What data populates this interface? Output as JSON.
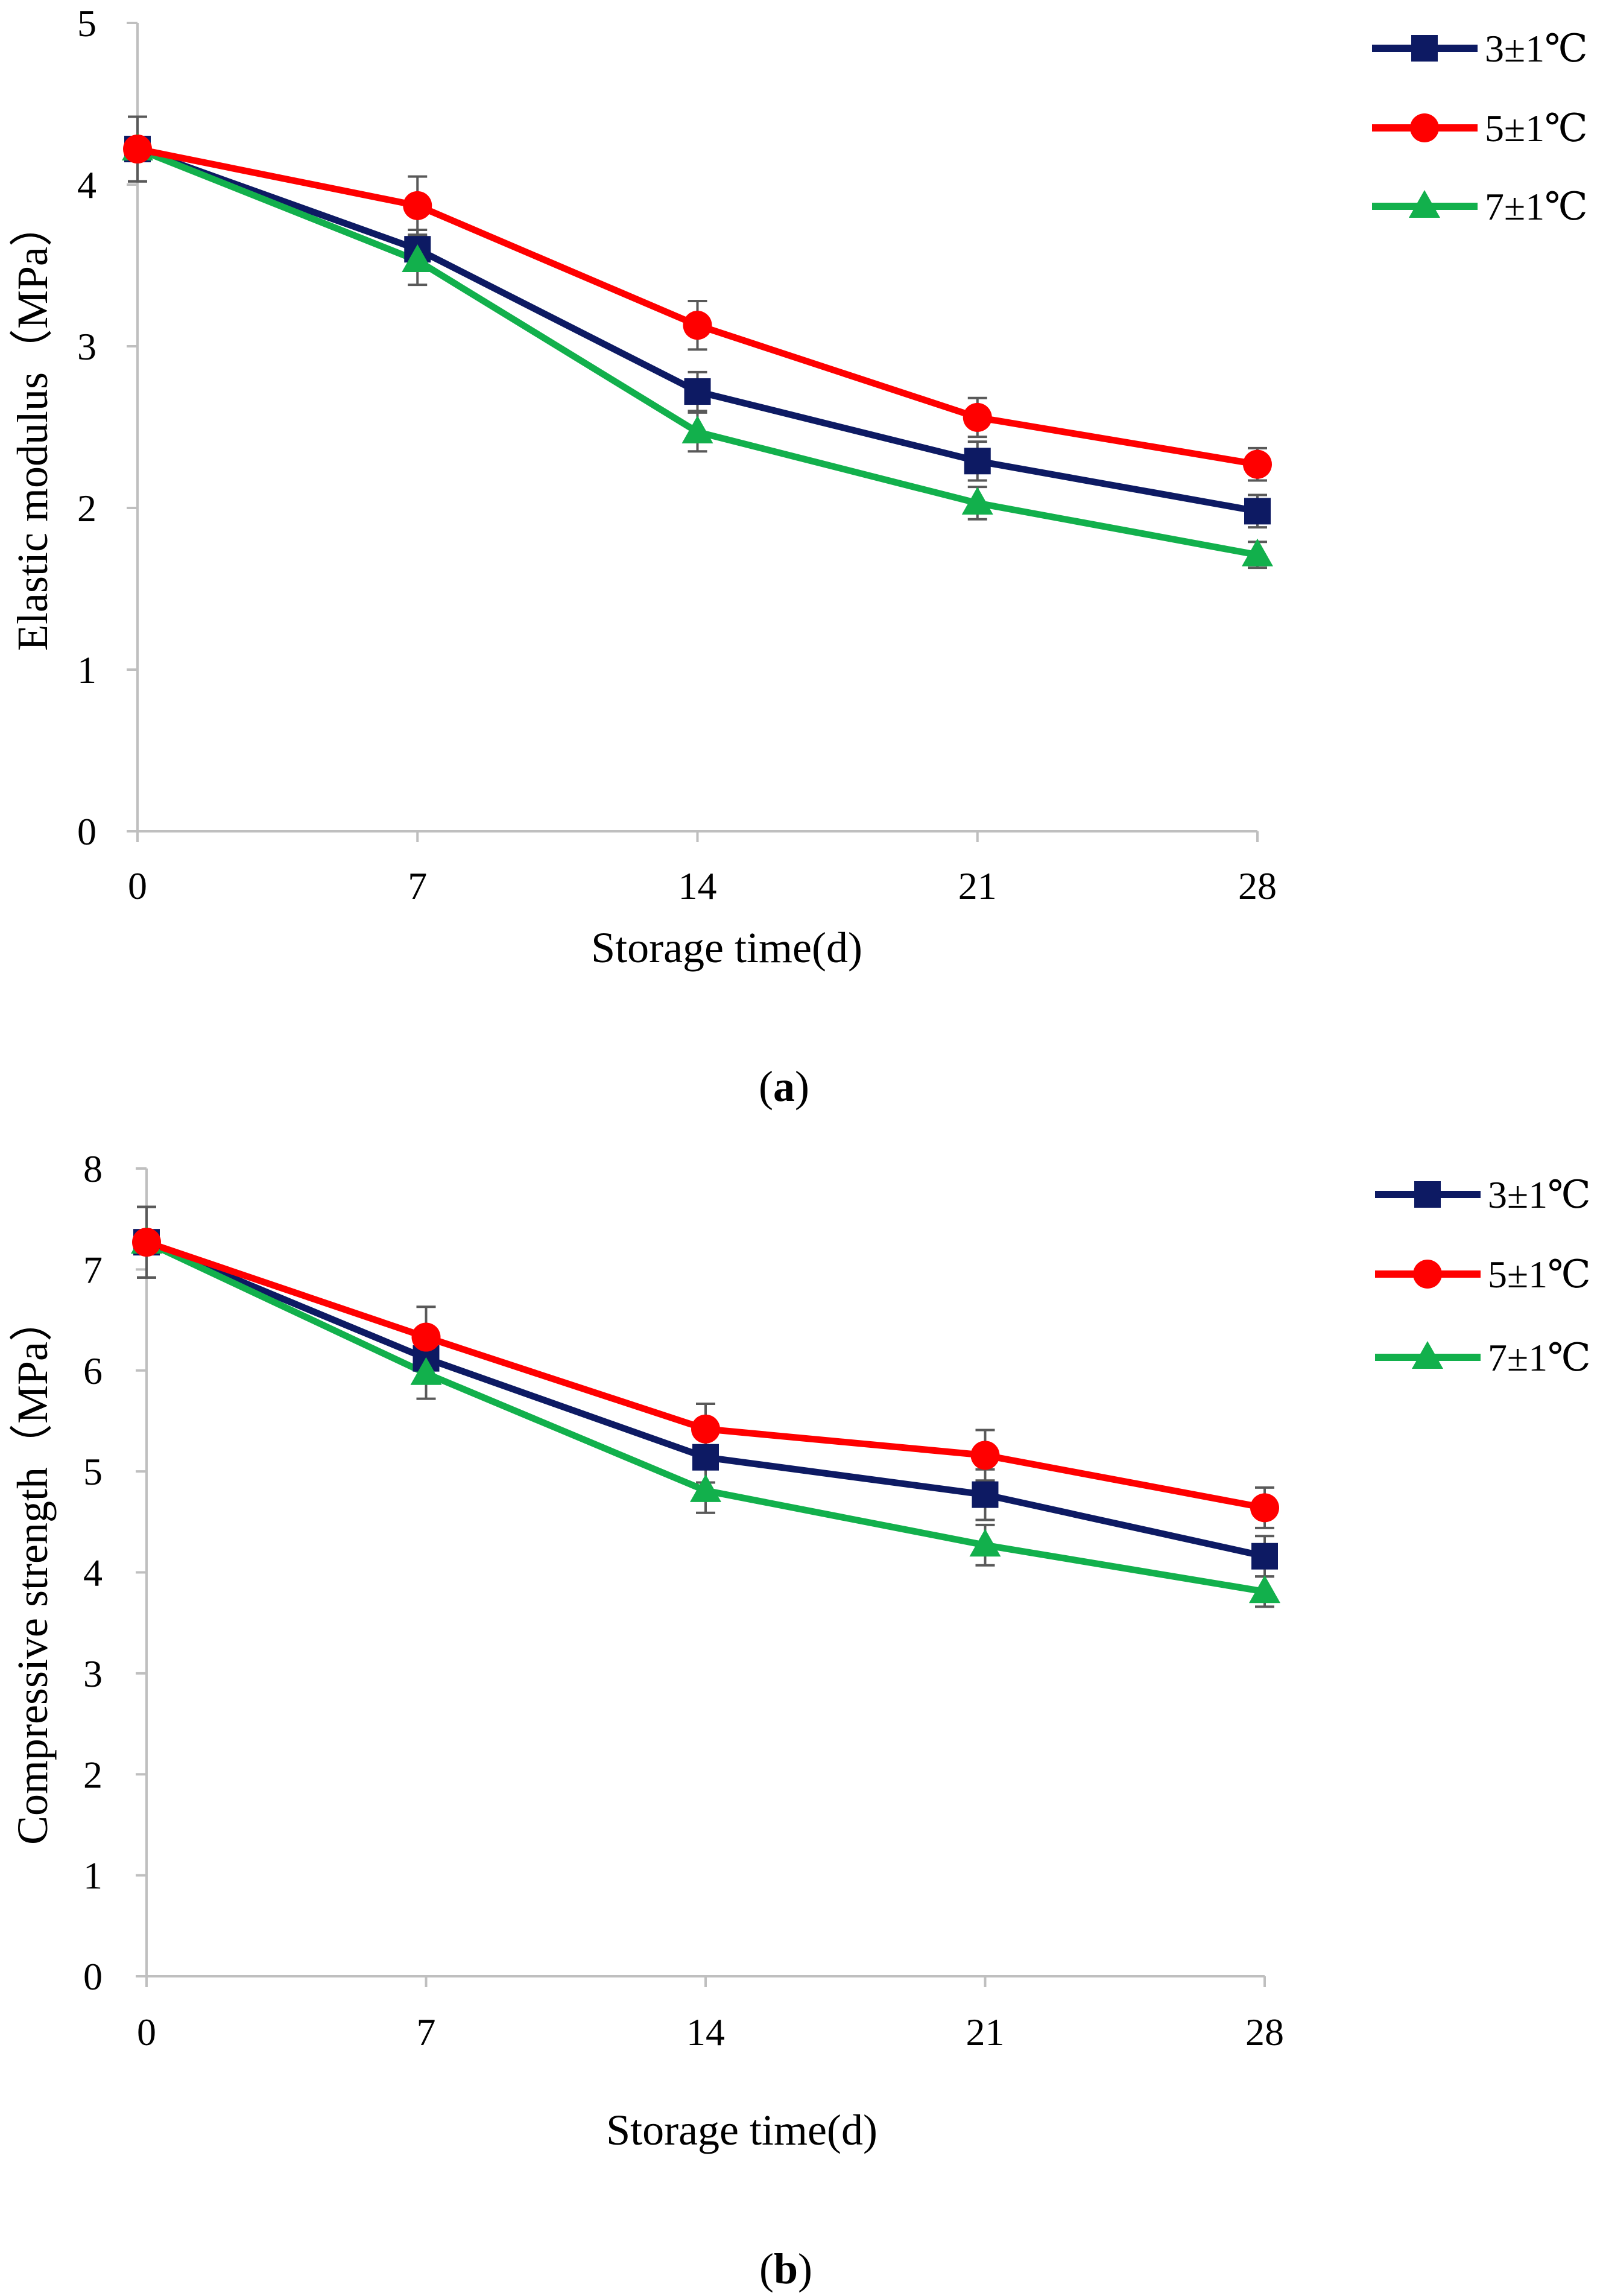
{
  "chart_data": [
    {
      "id": "a",
      "type": "line",
      "panel_label": "a",
      "xlabel": "Storage time(d)",
      "ylabel": "Elastic modulus（MPa）",
      "x": [
        0,
        7,
        14,
        21,
        28
      ],
      "x_tick_labels": [
        "0",
        "7",
        "14",
        "21",
        "28"
      ],
      "xlim": [
        0,
        28
      ],
      "ylim": [
        0,
        5
      ],
      "y_ticks": [
        0,
        1,
        2,
        3,
        4,
        5
      ],
      "y_tick_labels": [
        "0",
        "1",
        "2",
        "3",
        "4",
        "5"
      ],
      "grid": false,
      "legend_position": "top-right",
      "series": [
        {
          "name": "3±1℃",
          "marker": "square",
          "color": "#0d1a63",
          "values": [
            4.22,
            3.6,
            2.72,
            2.29,
            1.98
          ],
          "errors": [
            0.2,
            0.12,
            0.12,
            0.12,
            0.1
          ]
        },
        {
          "name": "5±1℃",
          "marker": "circle",
          "color": "#ff0000",
          "values": [
            4.22,
            3.87,
            3.13,
            2.56,
            2.27
          ],
          "errors": [
            0.2,
            0.18,
            0.15,
            0.12,
            0.1
          ]
        },
        {
          "name": "7±1℃",
          "marker": "triangle",
          "color": "#12b04c",
          "values": [
            4.22,
            3.53,
            2.47,
            2.03,
            1.71
          ],
          "errors": [
            0.2,
            0.15,
            0.12,
            0.1,
            0.08
          ]
        }
      ]
    },
    {
      "id": "b",
      "type": "line",
      "panel_label": "b",
      "xlabel": "Storage time(d)",
      "ylabel": "Compressive strength（MPa）",
      "x": [
        0,
        7,
        14,
        21,
        28
      ],
      "x_tick_labels": [
        "0",
        "7",
        "14",
        "21",
        "28"
      ],
      "xlim": [
        0,
        28
      ],
      "ylim": [
        0,
        8
      ],
      "y_ticks": [
        0,
        1,
        2,
        3,
        4,
        5,
        6,
        7,
        8
      ],
      "y_tick_labels": [
        "0",
        "1",
        "2",
        "3",
        "4",
        "5",
        "6",
        "7",
        "8"
      ],
      "grid": false,
      "legend_position": "top-right",
      "series": [
        {
          "name": "3±1℃",
          "marker": "square",
          "color": "#0d1a63",
          "values": [
            7.27,
            6.12,
            5.14,
            4.77,
            4.16
          ],
          "errors": [
            0.35,
            0.25,
            0.25,
            0.25,
            0.2
          ]
        },
        {
          "name": "5±1℃",
          "marker": "circle",
          "color": "#ff0000",
          "values": [
            7.27,
            6.33,
            5.42,
            5.16,
            4.64
          ],
          "errors": [
            0.35,
            0.3,
            0.25,
            0.25,
            0.2
          ]
        },
        {
          "name": "7±1℃",
          "marker": "triangle",
          "color": "#12b04c",
          "values": [
            7.27,
            5.97,
            4.81,
            4.27,
            3.81
          ],
          "errors": [
            0.35,
            0.25,
            0.22,
            0.2,
            0.15
          ]
        }
      ]
    }
  ]
}
